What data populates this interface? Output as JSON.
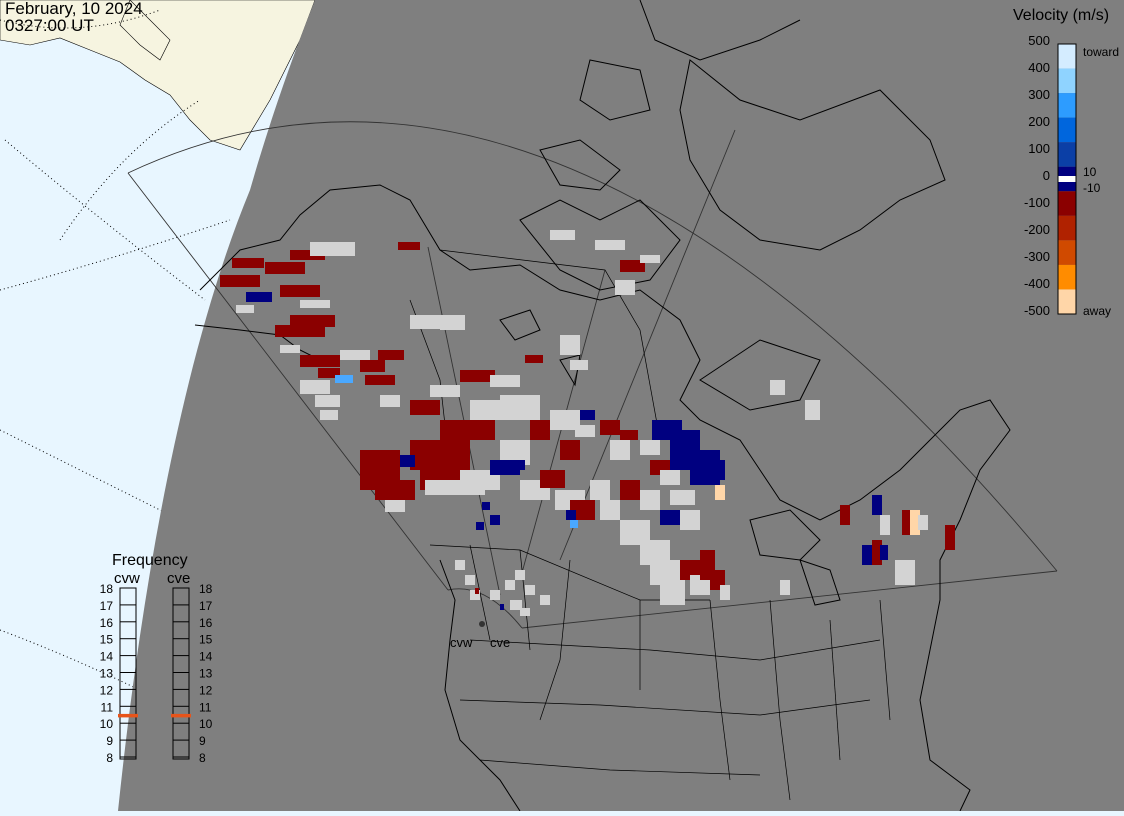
{
  "header": {
    "date": "February, 10 2024",
    "time": "0327:00 UT"
  },
  "legend": {
    "title": "Velocity (m/s)",
    "ticks": [
      "500",
      "400",
      "300",
      "200",
      "100",
      "0",
      "-100",
      "-200",
      "-300",
      "-400",
      "-500"
    ],
    "label_toward": "toward",
    "label_away": "away",
    "label_pos10": "10",
    "label_neg10": "-10",
    "colors": [
      "#d4ecff",
      "#8fd3ff",
      "#2d9cff",
      "#0066dd",
      "#0b3fa6",
      "#000080",
      "#8b0000",
      "#b02200",
      "#d04a00",
      "#ff8c00",
      "#ffd6a8"
    ]
  },
  "frequency_panel": {
    "title": "Frequency",
    "radar_left": "cvw",
    "radar_right": "cve",
    "levels": [
      "18",
      "17",
      "16",
      "15",
      "14",
      "13",
      "12",
      "11",
      "10",
      "9",
      "8"
    ],
    "cvw_frequency_mhz": 11,
    "cve_frequency_mhz": 11,
    "indicator_color": "#e8541a"
  },
  "map": {
    "radar_sites": [
      "cvw",
      "cve"
    ],
    "ocean_color": "#e8f6ff",
    "land_color": "#f6f4e0",
    "night_color": "#7f7f7f",
    "ground_scatter_color": "#d3d3d3"
  }
}
